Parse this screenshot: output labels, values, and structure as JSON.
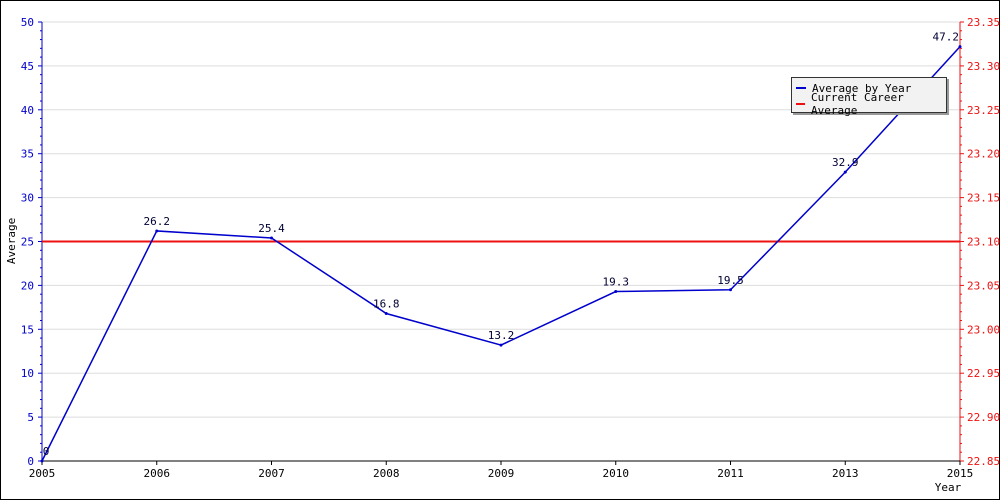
{
  "chart_data": {
    "type": "line",
    "xlabel": "Year",
    "ylabel": "Average",
    "x": [
      "2005",
      "2006",
      "2007",
      "2008",
      "2009",
      "2010",
      "2011",
      "2013",
      "2015"
    ],
    "ylim": [
      0,
      50
    ],
    "yticks": [
      0,
      5,
      10,
      15,
      20,
      25,
      30,
      35,
      40,
      45,
      50
    ],
    "y2lim": [
      22.85,
      23.35
    ],
    "y2ticks": [
      "22.85",
      "22.90",
      "22.95",
      "23.00",
      "23.05",
      "23.10",
      "23.15",
      "23.20",
      "23.25",
      "23.30",
      "23.35"
    ],
    "grid": true,
    "legend_position": "top-right",
    "series": [
      {
        "name": "Average by Year",
        "axis": "left",
        "color": "#0000cc",
        "values": [
          0,
          26.2,
          25.4,
          16.8,
          13.2,
          19.3,
          19.5,
          32.9,
          47.2
        ],
        "labels": [
          "0",
          "26.2",
          "25.4",
          "16.8",
          "13.2",
          "19.3",
          "19.5",
          "32.9",
          "47.2"
        ]
      },
      {
        "name": "Current Career Average",
        "axis": "right",
        "color": "#ee1111",
        "value": 23.1
      }
    ]
  }
}
